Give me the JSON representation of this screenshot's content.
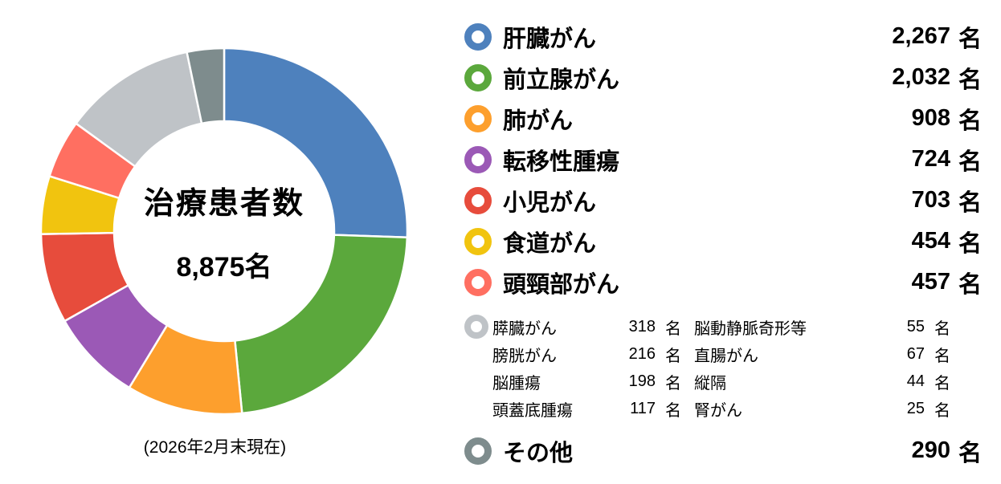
{
  "chart_data": {
    "type": "donut",
    "title": "治療患者数 8,875名",
    "center_title": "治療患者数",
    "center_value": "8,875名",
    "total": 8875,
    "unit": "名",
    "caption": "(2026年2月末現在)",
    "start_angle_deg": 0,
    "direction": "clockwise",
    "slices": [
      {
        "label": "肝臓がん",
        "value": 2267,
        "color": "#4E81BD"
      },
      {
        "label": "前立腺がん",
        "value": 2032,
        "color": "#5BA83C"
      },
      {
        "label": "肺がん",
        "value": 908,
        "color": "#FD9F2D"
      },
      {
        "label": "転移性腫瘍",
        "value": 724,
        "color": "#9B59B6"
      },
      {
        "label": "小児がん",
        "value": 703,
        "color": "#E74C3C"
      },
      {
        "label": "食道がん",
        "value": 454,
        "color": "#F1C40F"
      },
      {
        "label": "頭頸部がん",
        "value": 457,
        "color": "#FF6F61"
      },
      {
        "label": "膵臓がん他(小計)",
        "value": 1040,
        "color": "#BFC3C7"
      },
      {
        "label": "その他",
        "value": 290,
        "color": "#7E8C8D"
      }
    ]
  },
  "legend": {
    "main_items": [
      {
        "label": "肝臓がん",
        "value_display": "2,267",
        "unit": "名",
        "color": "#4E81BD"
      },
      {
        "label": "前立腺がん",
        "value_display": "2,032",
        "unit": "名",
        "color": "#5BA83C"
      },
      {
        "label": "肺がん",
        "value_display": "908",
        "unit": "名",
        "color": "#FD9F2D"
      },
      {
        "label": "転移性腫瘍",
        "value_display": "724",
        "unit": "名",
        "color": "#9B59B6"
      },
      {
        "label": "小児がん",
        "value_display": "703",
        "unit": "名",
        "color": "#E74C3C"
      },
      {
        "label": "食道がん",
        "value_display": "454",
        "unit": "名",
        "color": "#F1C40F"
      },
      {
        "label": "頭頸部がん",
        "value_display": "457",
        "unit": "名",
        "color": "#FF6F61"
      }
    ],
    "sub_group": {
      "marker_color": "#BFC3C7",
      "columns": [
        {
          "rows": [
            {
              "label": "膵臓がん",
              "value_display": "318",
              "unit": "名"
            },
            {
              "label": "膀胱がん",
              "value_display": "216",
              "unit": "名"
            },
            {
              "label": "脳腫瘍",
              "value_display": "198",
              "unit": "名"
            },
            {
              "label": "頭蓋底腫瘍",
              "value_display": "117",
              "unit": "名"
            }
          ]
        },
        {
          "rows": [
            {
              "label": "脳動静脈奇形等",
              "value_display": "55",
              "unit": "名"
            },
            {
              "label": "直腸がん",
              "value_display": "67",
              "unit": "名"
            },
            {
              "label": "縦隔",
              "value_display": "44",
              "unit": "名"
            },
            {
              "label": "腎がん",
              "value_display": "25",
              "unit": "名"
            }
          ]
        }
      ]
    },
    "other_item": {
      "label": "その他",
      "value_display": "290",
      "unit": "名",
      "color": "#7E8C8D"
    }
  }
}
